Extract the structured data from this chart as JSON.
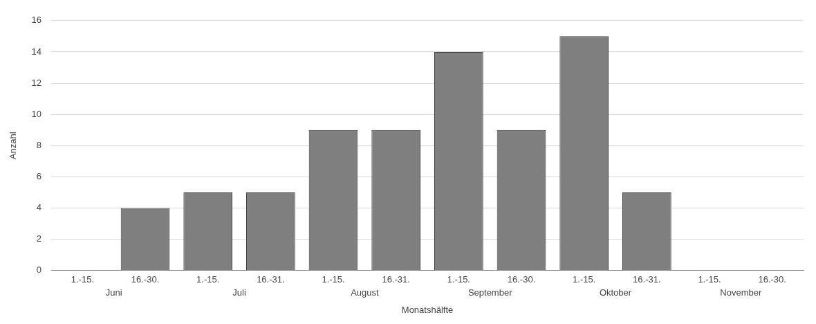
{
  "chart_data": {
    "type": "bar",
    "xlabel": "Monatshälfte",
    "ylabel": "Anzahl",
    "categories": [
      "1.-15.",
      "16.-30.",
      "1.-15.",
      "16.-31.",
      "1.-15.",
      "16.-31.",
      "1.-15.",
      "16.-30.",
      "1.-15.",
      "16.-31.",
      "1.-15.",
      "16.-30."
    ],
    "values": [
      0,
      4,
      5,
      5,
      9,
      9,
      14,
      9,
      15,
      5,
      0,
      0
    ],
    "color": "#7f7f7f",
    "annotations": [
      "Juni",
      "Juli",
      "August",
      "September",
      "Oktober",
      "November"
    ],
    "ylim": [
      0,
      16
    ],
    "yticks": [
      0,
      2,
      4,
      6,
      8,
      10,
      12,
      14,
      16
    ],
    "grid": "y",
    "legend": false
  }
}
